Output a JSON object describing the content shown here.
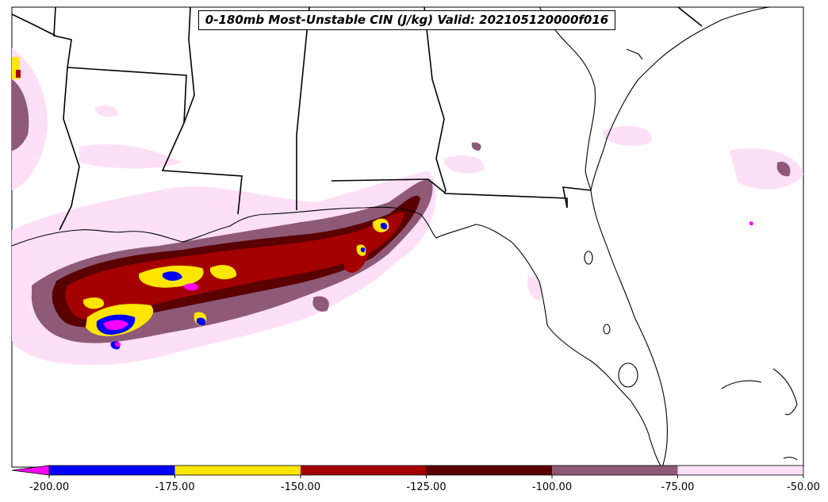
{
  "title": "0-180mb Most-Unstable CIN (J/kg) Valid: 202105120000f016",
  "colorbar": {
    "ticks": [
      "-200.00",
      "-175.00",
      "-150.00",
      "-125.00",
      "-100.00",
      "-75.00",
      "-50.00"
    ],
    "bins": [
      {
        "range": "< -200",
        "color": "#ff00ff"
      },
      {
        "range": "-200 to -175",
        "color": "#0000ff"
      },
      {
        "range": "-175 to -150",
        "color": "#ffe600"
      },
      {
        "range": "-150 to -125",
        "color": "#a50000"
      },
      {
        "range": "-125 to -100",
        "color": "#5a0000"
      },
      {
        "range": "-100 to -75",
        "color": "#8e5a78"
      },
      {
        "range": "-75 to -50",
        "color": "#fde0f8"
      }
    ],
    "extend": "min"
  },
  "colors": {
    "border": "#000000",
    "background": "#ffffff"
  }
}
